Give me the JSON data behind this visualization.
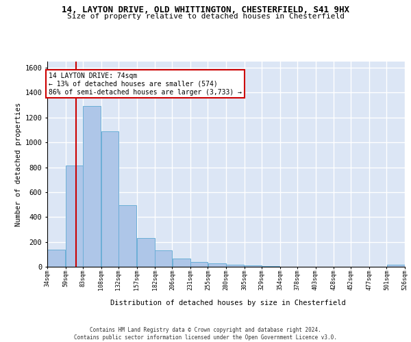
{
  "title_line1": "14, LAYTON DRIVE, OLD WHITTINGTON, CHESTERFIELD, S41 9HX",
  "title_line2": "Size of property relative to detached houses in Chesterfield",
  "xlabel": "Distribution of detached houses by size in Chesterfield",
  "ylabel": "Number of detached properties",
  "bar_color": "#aec6e8",
  "bar_edge_color": "#6baed6",
  "background_color": "#dce6f5",
  "grid_color": "#ffffff",
  "vline_color": "#cc0000",
  "vline_x": 74,
  "annotation_text": "14 LAYTON DRIVE: 74sqm\n← 13% of detached houses are smaller (574)\n86% of semi-detached houses are larger (3,733) →",
  "footer_text": "Contains HM Land Registry data © Crown copyright and database right 2024.\nContains public sector information licensed under the Open Government Licence v3.0.",
  "bin_edges": [
    34,
    59,
    83,
    108,
    132,
    157,
    182,
    206,
    231,
    255,
    280,
    305,
    329,
    354,
    378,
    403,
    428,
    452,
    477,
    501,
    526
  ],
  "bar_heights": [
    140,
    815,
    1290,
    1090,
    495,
    230,
    130,
    65,
    38,
    28,
    15,
    10,
    5,
    2,
    1,
    1,
    1,
    1,
    1,
    15
  ],
  "ylim": [
    0,
    1650
  ],
  "yticks": [
    0,
    200,
    400,
    600,
    800,
    1000,
    1200,
    1400,
    1600
  ]
}
